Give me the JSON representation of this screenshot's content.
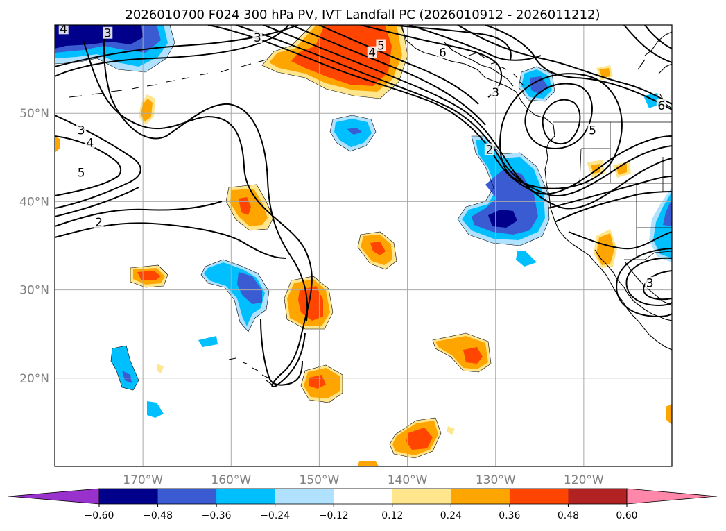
{
  "title": "2026010700 F024 300 hPa PV, IVT Landfall PC (2026010912 - 2026011212)",
  "map": {
    "lon_range": [
      -180,
      -110
    ],
    "lat_range": [
      10,
      60
    ],
    "grid": true,
    "lon_ticks": [
      {
        "lon": -170,
        "label": "170°W"
      },
      {
        "lon": -160,
        "label": "160°W"
      },
      {
        "lon": -150,
        "label": "150°W"
      },
      {
        "lon": -140,
        "label": "140°W"
      },
      {
        "lon": -130,
        "label": "130°W"
      },
      {
        "lon": -120,
        "label": "120°W"
      }
    ],
    "lat_ticks": [
      {
        "lat": 20,
        "label": "20°N"
      },
      {
        "lat": 30,
        "label": "30°N"
      },
      {
        "lat": 40,
        "label": "40°N"
      },
      {
        "lat": 50,
        "label": "50°N"
      }
    ],
    "contour_labels": [
      {
        "text": "3",
        "lon": -174,
        "lat": 59
      },
      {
        "text": "4",
        "lon": -179,
        "lat": 59.5
      },
      {
        "text": "3",
        "lon": -177,
        "lat": 48
      },
      {
        "text": "4",
        "lon": -176,
        "lat": 46.6
      },
      {
        "text": "5",
        "lon": -177,
        "lat": 43.2
      },
      {
        "text": "2",
        "lon": -175,
        "lat": 37.6
      },
      {
        "text": "3",
        "lon": -157,
        "lat": 58.5
      },
      {
        "text": "5",
        "lon": -143,
        "lat": 57.6
      },
      {
        "text": "4",
        "lon": -144,
        "lat": 56.8
      },
      {
        "text": "6",
        "lon": -136,
        "lat": 56.8
      },
      {
        "text": "3",
        "lon": -130,
        "lat": 52.3
      },
      {
        "text": "2",
        "lon": -130.7,
        "lat": 45.8
      },
      {
        "text": "5",
        "lon": -119,
        "lat": 48.0
      },
      {
        "text": "6",
        "lon": -111.2,
        "lat": 50.8
      },
      {
        "text": "3",
        "lon": -112.5,
        "lat": 30.7
      }
    ]
  },
  "colorbar": {
    "levels": [
      "-0.60",
      "-0.48",
      "-0.36",
      "-0.24",
      "-0.12",
      "0.12",
      "0.24",
      "0.36",
      "0.48",
      "0.60"
    ],
    "colors": [
      "#9932cc",
      "#00008b",
      "#3a5bd1",
      "#00bfff",
      "#b0e2ff",
      "#ffffff",
      "#ffe68c",
      "#ffa500",
      "#ff4500",
      "#b22222",
      "#ff88aa"
    ],
    "extend": "both"
  },
  "features": [
    {
      "name": "pos-anomaly-gulf-of-alaska",
      "color_index": 7,
      "core_index": 8
    },
    {
      "name": "neg-anomaly-pnw-offshore",
      "color_index": 3,
      "core_index": 2
    },
    {
      "name": "neg-anomaly-nw-corner",
      "color_index": 3,
      "core_index": 1
    }
  ]
}
